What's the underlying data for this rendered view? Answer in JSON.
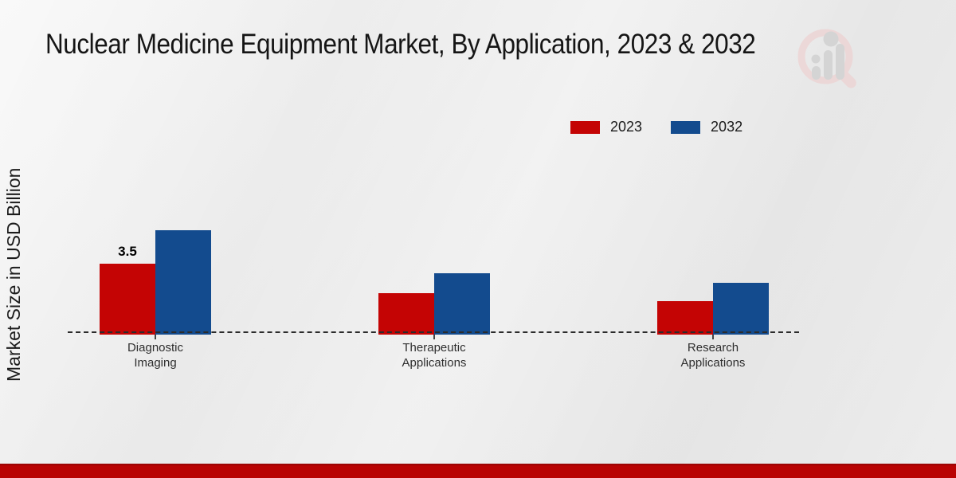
{
  "title": "Nuclear Medicine Equipment Market, By Application, 2023 & 2032",
  "watermark": {
    "name": "market-research-magnifier-logo"
  },
  "chart_data": {
    "type": "bar",
    "title": "Nuclear Medicine Equipment Market, By Application, 2023 & 2032",
    "ylabel": "Market Size in USD Billion",
    "xlabel": "",
    "categories": [
      "Diagnostic Imaging",
      "Therapeutic Applications",
      "Research Applications"
    ],
    "series": [
      {
        "name": "2023",
        "color": "#c40404",
        "values": [
          3.5,
          2.0,
          1.6
        ]
      },
      {
        "name": "2032",
        "color": "#134b8e",
        "values": [
          5.2,
          3.0,
          2.5
        ]
      }
    ],
    "data_labels": [
      {
        "series": "2023",
        "category": "Diagnostic Imaging",
        "text": "3.5"
      }
    ],
    "ylim": [
      0,
      5.5
    ],
    "grid": false,
    "legend_position": "top-right",
    "baseline_style": "dashed",
    "y_axis_visible": false
  },
  "footer": {
    "stripe_color": "#b90303",
    "stripe_edge_color": "#8f0606"
  }
}
